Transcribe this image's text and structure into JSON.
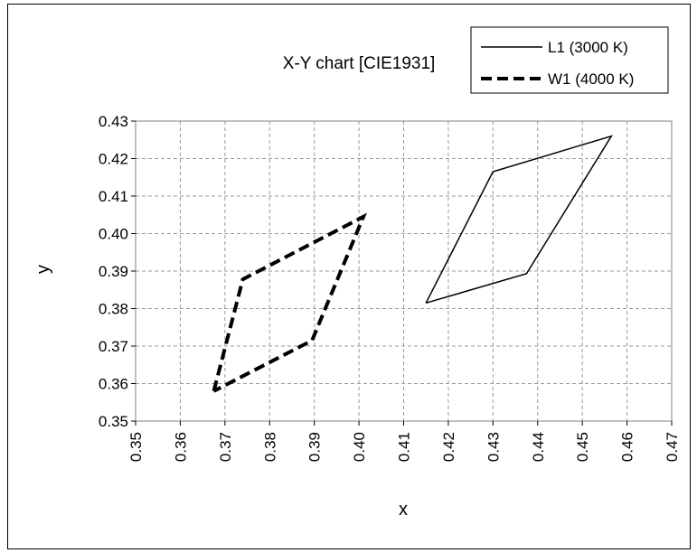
{
  "chart_data": {
    "type": "line",
    "title": "X-Y chart [CIE1931]",
    "xlabel": "x",
    "ylabel": "y",
    "xlim": [
      0.35,
      0.47
    ],
    "ylim": [
      0.35,
      0.43
    ],
    "x_ticks": [
      "0.35",
      "0.36",
      "0.37",
      "0.38",
      "0.39",
      "0.40",
      "0.41",
      "0.42",
      "0.43",
      "0.44",
      "0.45",
      "0.46",
      "0.47"
    ],
    "y_ticks": [
      "0.35",
      "0.36",
      "0.37",
      "0.38",
      "0.39",
      "0.40",
      "0.41",
      "0.42",
      "0.43"
    ],
    "grid": true,
    "legend_position": "top-right",
    "series": [
      {
        "name": "L1 (3000 K)",
        "style": "solid",
        "color": "#000000",
        "points": [
          [
            0.415,
            0.3815
          ],
          [
            0.43,
            0.4165
          ],
          [
            0.4565,
            0.426
          ],
          [
            0.4375,
            0.3893
          ],
          [
            0.415,
            0.3815
          ]
        ]
      },
      {
        "name": "W1 (4000 K)",
        "style": "dashed",
        "color": "#000000",
        "points": [
          [
            0.3675,
            0.358
          ],
          [
            0.374,
            0.3878
          ],
          [
            0.401,
            0.4045
          ],
          [
            0.3895,
            0.3715
          ],
          [
            0.3675,
            0.358
          ]
        ]
      }
    ]
  }
}
